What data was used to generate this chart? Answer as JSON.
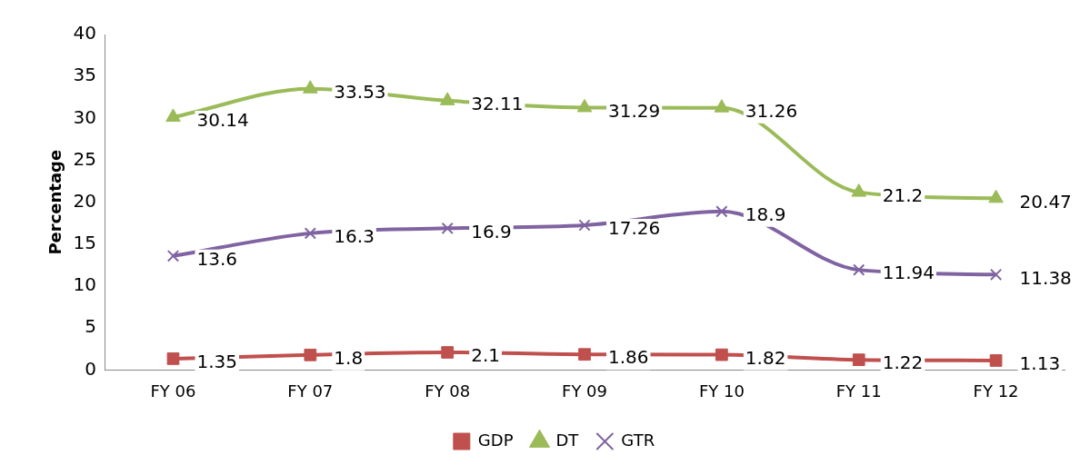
{
  "chart_data": {
    "type": "line",
    "ylabel": "Percentage",
    "categories": [
      "FY 06",
      "FY 07",
      "FY 08",
      "FY 09",
      "FY 10",
      "FY 11",
      "FY 12"
    ],
    "series": [
      {
        "name": "GDP",
        "color": "#c0504d",
        "marker": "square",
        "values": [
          1.35,
          1.8,
          2.1,
          1.86,
          1.82,
          1.22,
          1.13
        ]
      },
      {
        "name": "DT",
        "color": "#9bbb59",
        "marker": "triangle",
        "values": [
          30.14,
          33.53,
          32.11,
          31.29,
          31.26,
          21.2,
          20.47
        ]
      },
      {
        "name": "GTR",
        "color": "#8064a2",
        "marker": "cross",
        "values": [
          13.6,
          16.3,
          16.9,
          17.26,
          18.9,
          11.94,
          11.38
        ]
      }
    ],
    "ylim": [
      0,
      40
    ],
    "yticks": [
      0,
      5,
      10,
      15,
      20,
      25,
      30,
      35,
      40
    ],
    "grid": false,
    "legend": "bottom",
    "data_labels": true
  }
}
